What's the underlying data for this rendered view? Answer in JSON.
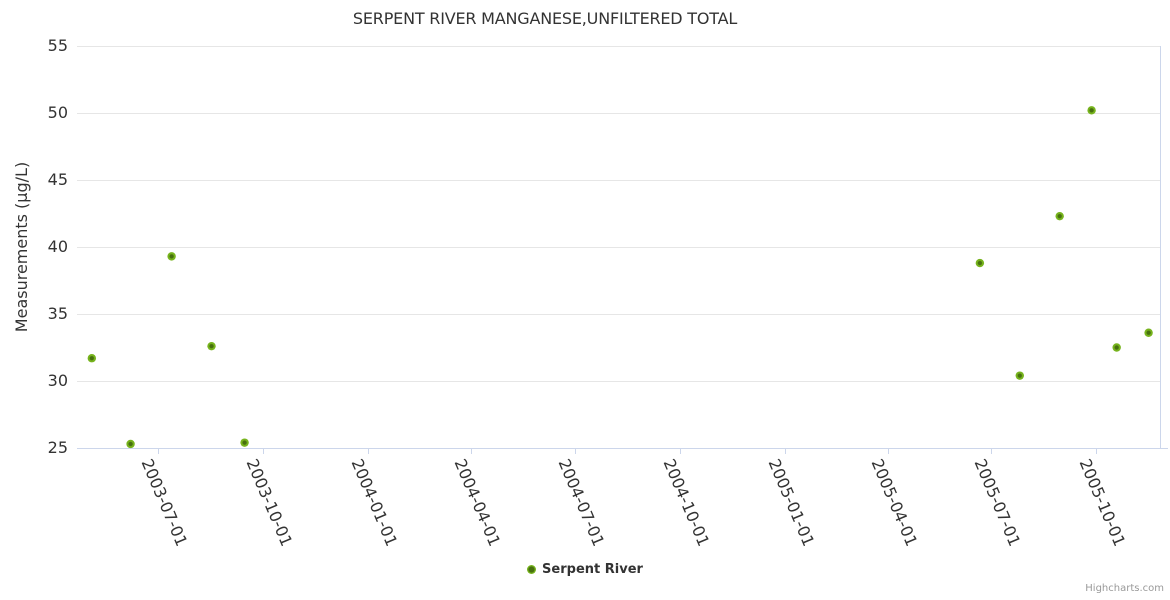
{
  "chart": {
    "credits_label": "Highcharts.com"
  },
  "icons": {
    "legend_marker": "circle-dot-icon"
  },
  "colors": {
    "background": "#ffffff",
    "title_text": "#333333",
    "label_text": "#333333",
    "grid_line": "#e6e6e6",
    "axis_line": "#ccd6eb",
    "marker_outer": "#76b31c",
    "marker_core": "#47700f",
    "credits_text": "#999999"
  },
  "chart_data": {
    "type": "scatter",
    "title": "SERPENT RIVER MANGANESE,UNFILTERED TOTAL",
    "xlabel": "",
    "ylabel": "Measurements (µg/L)",
    "ylim": [
      25,
      55
    ],
    "y_ticks": [
      55,
      50,
      45,
      40,
      35,
      30,
      25
    ],
    "x_ticks": [
      "2003-07-01",
      "2003-10-01",
      "2004-01-01",
      "2004-04-01",
      "2004-07-01",
      "2004-10-01",
      "2005-01-01",
      "2005-04-01",
      "2005-07-01",
      "2005-10-01"
    ],
    "x_range": [
      "2003-04-21",
      "2005-11-26"
    ],
    "grid": true,
    "legend_position": "bottom-center",
    "series": [
      {
        "name": "Serpent River",
        "color": "#76b31c",
        "points": [
          {
            "date": "2003-05-04",
            "value": 31.7
          },
          {
            "date": "2003-06-07",
            "value": 25.3
          },
          {
            "date": "2003-07-13",
            "value": 39.3
          },
          {
            "date": "2003-08-17",
            "value": 32.6
          },
          {
            "date": "2003-09-15",
            "value": 25.4
          },
          {
            "date": "2005-06-21",
            "value": 38.8
          },
          {
            "date": "2005-07-26",
            "value": 30.4
          },
          {
            "date": "2005-08-30",
            "value": 42.3
          },
          {
            "date": "2005-09-27",
            "value": 50.2
          },
          {
            "date": "2005-10-19",
            "value": 32.5
          },
          {
            "date": "2005-11-16",
            "value": 33.6
          }
        ]
      }
    ]
  }
}
